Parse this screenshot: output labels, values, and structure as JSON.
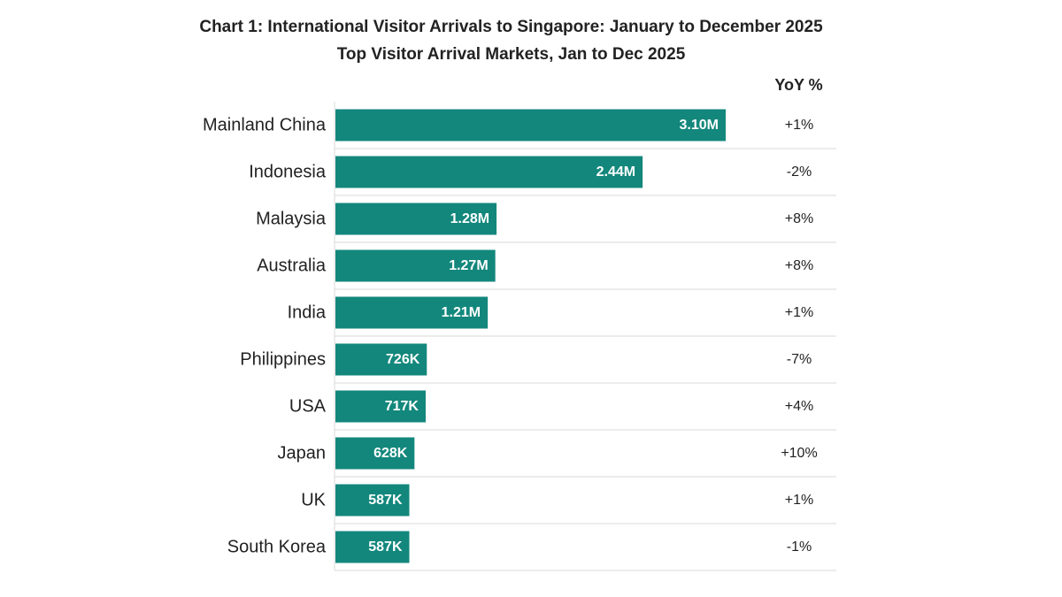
{
  "chart_data": {
    "type": "bar",
    "orientation": "horizontal",
    "title": "Chart 1: International Visitor Arrivals to Singapore: January to December 2025",
    "subtitle": "Top Visitor Arrival Markets, Jan to Dec 2025",
    "yoy_header": "YoY %",
    "categories": [
      "Mainland China",
      "Indonesia",
      "Malaysia",
      "Australia",
      "India",
      "Philippines",
      "USA",
      "Japan",
      "UK",
      "South Korea"
    ],
    "values": [
      3100000,
      2440000,
      1280000,
      1270000,
      1210000,
      726000,
      717000,
      628000,
      587000,
      587000
    ],
    "value_labels": [
      "3.10M",
      "2.44M",
      "1.28M",
      "1.27M",
      "1.21M",
      "726K",
      "717K",
      "628K",
      "587K",
      "587K"
    ],
    "yoy": [
      "+1%",
      "-2%",
      "+8%",
      "+8%",
      "+1%",
      "-7%",
      "+4%",
      "+10%",
      "+1%",
      "-1%"
    ],
    "xlim": [
      0,
      3100000
    ],
    "grid": false,
    "legend": "none",
    "bar_color": "#13877C",
    "separator_color": "#d9d9d9"
  }
}
